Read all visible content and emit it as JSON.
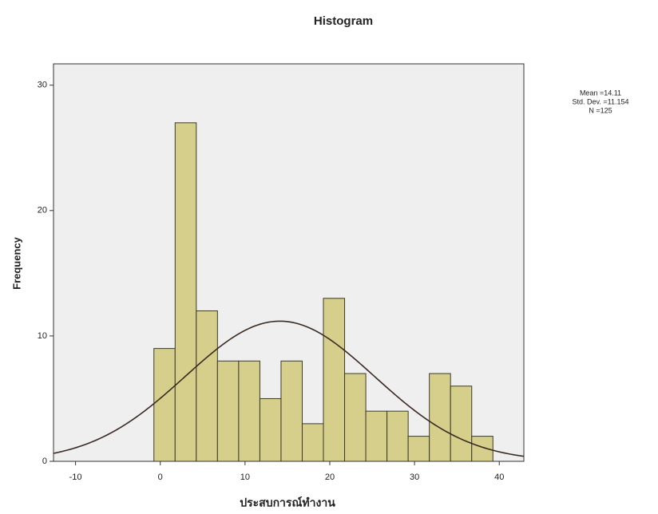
{
  "chart_data": {
    "type": "histogram",
    "title": "Histogram",
    "x_label": "ประสบการณ์ทำงาน",
    "y_label": "Frequency",
    "bins": [
      -0.75,
      1.75,
      4.25,
      6.75,
      9.25,
      11.75,
      14.25,
      16.75,
      19.25,
      21.75,
      24.25,
      26.75,
      29.25,
      31.75,
      34.25,
      36.75,
      39.25
    ],
    "values": [
      9,
      27,
      12,
      8,
      8,
      5,
      8,
      3,
      13,
      7,
      4,
      4,
      2,
      7,
      6,
      2
    ],
    "color": "#d6cf8c",
    "edge_color": "#3a3a2a",
    "plot_background": "#efefef",
    "curve_color": "#3a2a22",
    "xlim": [
      -12.6,
      42.9
    ],
    "ylim": [
      0,
      31.7
    ],
    "xticks": [
      -10,
      0,
      10,
      20,
      30,
      40
    ],
    "yticks": [
      0,
      10,
      20,
      30
    ],
    "stats": {
      "mean": {
        "value": 14.11,
        "label": "Mean =14.11"
      },
      "std_dev": {
        "value": 11.154,
        "label": "Std. Dev. =11.154"
      },
      "n": {
        "value": 125,
        "label": "N =125"
      }
    }
  }
}
